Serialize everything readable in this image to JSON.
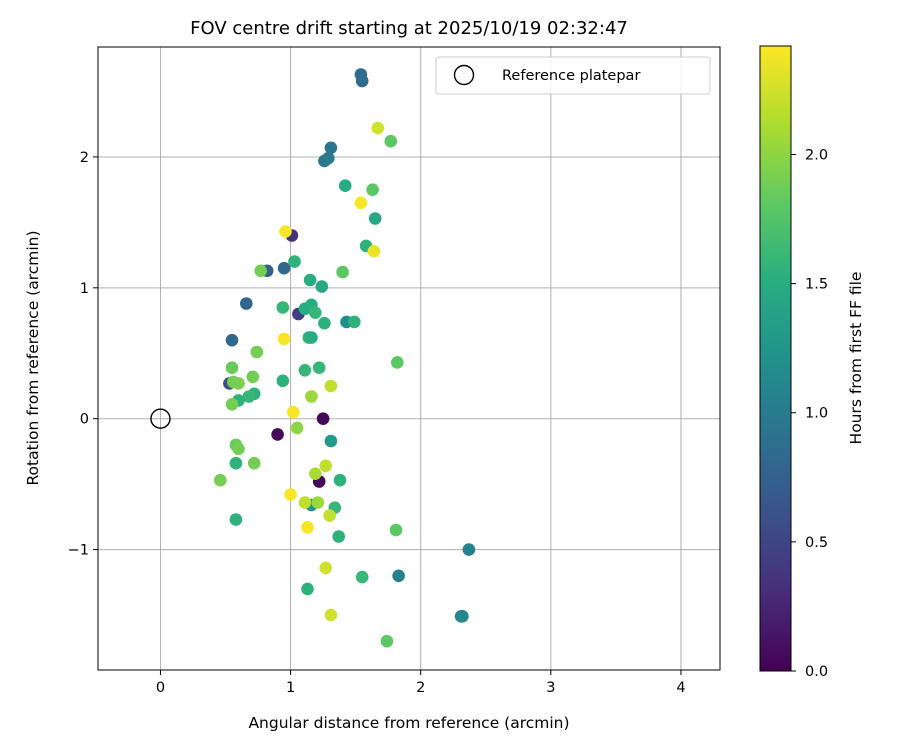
{
  "chart_data": {
    "type": "scatter",
    "title": "FOV centre drift starting at 2025/10/19 02:32:47",
    "xlabel": "Angular distance from reference (arcmin)",
    "ylabel": "Rotation from reference (arcmin)",
    "xlim": [
      -0.48,
      4.3
    ],
    "ylim": [
      -1.92,
      2.84
    ],
    "xticks": [
      0,
      1,
      2,
      3,
      4
    ],
    "yticks": [
      -1,
      0,
      1,
      2
    ],
    "xtick_labels": [
      "0",
      "1",
      "2",
      "3",
      "4"
    ],
    "ytick_labels": [
      "−1",
      "0",
      "1",
      "2"
    ],
    "grid": true,
    "legend": {
      "label": "Reference platepar",
      "location": "top-right"
    },
    "reference_point": {
      "x": 0,
      "y": 0
    },
    "colorbar": {
      "label": "Hours from first FF file",
      "colormap": "viridis",
      "range": [
        0.0,
        2.42
      ],
      "ticks": [
        0.0,
        0.5,
        1.0,
        1.5,
        2.0
      ],
      "tick_labels": [
        "0.0",
        "0.5",
        "1.0",
        "1.5",
        "2.0"
      ]
    },
    "points": [
      {
        "x": 0.9,
        "y": -0.12,
        "c": 0.05
      },
      {
        "x": 1.25,
        "y": 0.0,
        "c": 0.05
      },
      {
        "x": 1.22,
        "y": -0.48,
        "c": 0.05
      },
      {
        "x": 1.01,
        "y": 1.4,
        "c": 0.35
      },
      {
        "x": 1.06,
        "y": 0.8,
        "c": 0.45
      },
      {
        "x": 0.53,
        "y": 0.27,
        "c": 0.6
      },
      {
        "x": 0.55,
        "y": 0.6,
        "c": 0.8
      },
      {
        "x": 0.66,
        "y": 0.88,
        "c": 0.8
      },
      {
        "x": 0.95,
        "y": 1.15,
        "c": 0.8
      },
      {
        "x": 0.82,
        "y": 1.13,
        "c": 0.75
      },
      {
        "x": 1.54,
        "y": 2.63,
        "c": 0.85
      },
      {
        "x": 1.55,
        "y": 2.58,
        "c": 0.85
      },
      {
        "x": 1.31,
        "y": 2.07,
        "c": 0.95
      },
      {
        "x": 1.26,
        "y": 1.97,
        "c": 0.95
      },
      {
        "x": 1.29,
        "y": 1.99,
        "c": 1.0
      },
      {
        "x": 2.37,
        "y": -1.0,
        "c": 1.05
      },
      {
        "x": 1.83,
        "y": -1.2,
        "c": 1.05
      },
      {
        "x": 2.31,
        "y": -1.51,
        "c": 1.1
      },
      {
        "x": 2.32,
        "y": -1.51,
        "c": 1.1
      },
      {
        "x": 1.31,
        "y": -0.17,
        "c": 1.3
      },
      {
        "x": 1.16,
        "y": -0.66,
        "c": 1.25
      },
      {
        "x": 1.43,
        "y": 0.74,
        "c": 1.2
      },
      {
        "x": 1.65,
        "y": 1.53,
        "c": 1.45
      },
      {
        "x": 1.42,
        "y": 1.78,
        "c": 1.5
      },
      {
        "x": 1.49,
        "y": 0.74,
        "c": 1.55
      },
      {
        "x": 1.58,
        "y": 1.32,
        "c": 1.55
      },
      {
        "x": 1.03,
        "y": 1.2,
        "c": 1.55
      },
      {
        "x": 1.15,
        "y": 1.06,
        "c": 1.5
      },
      {
        "x": 1.24,
        "y": 1.01,
        "c": 1.45
      },
      {
        "x": 1.16,
        "y": 0.87,
        "c": 1.5
      },
      {
        "x": 1.11,
        "y": 0.84,
        "c": 1.5
      },
      {
        "x": 1.19,
        "y": 0.81,
        "c": 1.6
      },
      {
        "x": 1.26,
        "y": 0.73,
        "c": 1.55
      },
      {
        "x": 0.94,
        "y": 0.85,
        "c": 1.6
      },
      {
        "x": 1.14,
        "y": 0.62,
        "c": 1.55
      },
      {
        "x": 1.16,
        "y": 0.62,
        "c": 1.5
      },
      {
        "x": 1.22,
        "y": 0.39,
        "c": 1.6
      },
      {
        "x": 1.11,
        "y": 0.37,
        "c": 1.6
      },
      {
        "x": 0.94,
        "y": 0.29,
        "c": 1.55
      },
      {
        "x": 0.72,
        "y": 0.19,
        "c": 1.55
      },
      {
        "x": 0.68,
        "y": 0.17,
        "c": 1.6
      },
      {
        "x": 0.6,
        "y": 0.14,
        "c": 1.55
      },
      {
        "x": 0.58,
        "y": -0.34,
        "c": 1.55
      },
      {
        "x": 0.58,
        "y": -0.77,
        "c": 1.55
      },
      {
        "x": 1.38,
        "y": -0.47,
        "c": 1.55
      },
      {
        "x": 1.34,
        "y": -0.68,
        "c": 1.6
      },
      {
        "x": 1.37,
        "y": -0.9,
        "c": 1.55
      },
      {
        "x": 1.55,
        "y": -1.21,
        "c": 1.6
      },
      {
        "x": 1.13,
        "y": -1.3,
        "c": 1.55
      },
      {
        "x": 1.4,
        "y": 1.12,
        "c": 1.8
      },
      {
        "x": 1.63,
        "y": 1.75,
        "c": 1.8
      },
      {
        "x": 1.77,
        "y": 2.12,
        "c": 1.8
      },
      {
        "x": 1.82,
        "y": 0.43,
        "c": 1.8
      },
      {
        "x": 1.81,
        "y": -0.85,
        "c": 1.8
      },
      {
        "x": 1.74,
        "y": -1.7,
        "c": 1.8
      },
      {
        "x": 0.77,
        "y": 1.13,
        "c": 1.9
      },
      {
        "x": 0.74,
        "y": 0.51,
        "c": 1.9
      },
      {
        "x": 0.71,
        "y": 0.32,
        "c": 1.9
      },
      {
        "x": 0.55,
        "y": 0.39,
        "c": 1.85
      },
      {
        "x": 0.6,
        "y": 0.27,
        "c": 1.95
      },
      {
        "x": 0.56,
        "y": 0.28,
        "c": 1.9
      },
      {
        "x": 0.55,
        "y": 0.11,
        "c": 1.9
      },
      {
        "x": 0.58,
        "y": -0.2,
        "c": 1.85
      },
      {
        "x": 0.6,
        "y": -0.23,
        "c": 1.9
      },
      {
        "x": 0.72,
        "y": -0.34,
        "c": 1.9
      },
      {
        "x": 0.46,
        "y": -0.47,
        "c": 1.9
      },
      {
        "x": 1.05,
        "y": -0.07,
        "c": 2.0
      },
      {
        "x": 1.16,
        "y": 0.17,
        "c": 2.05
      },
      {
        "x": 1.19,
        "y": -0.42,
        "c": 2.1
      },
      {
        "x": 1.21,
        "y": -0.64,
        "c": 2.05
      },
      {
        "x": 1.27,
        "y": -0.36,
        "c": 2.2
      },
      {
        "x": 1.31,
        "y": 0.25,
        "c": 2.2
      },
      {
        "x": 1.11,
        "y": -0.64,
        "c": 2.2
      },
      {
        "x": 1.3,
        "y": -0.74,
        "c": 2.2
      },
      {
        "x": 1.27,
        "y": -1.14,
        "c": 2.25
      },
      {
        "x": 1.31,
        "y": -1.5,
        "c": 2.25
      },
      {
        "x": 1.67,
        "y": 2.22,
        "c": 2.25
      },
      {
        "x": 1.64,
        "y": 1.28,
        "c": 2.35
      },
      {
        "x": 1.54,
        "y": 1.65,
        "c": 2.4
      },
      {
        "x": 0.96,
        "y": 1.43,
        "c": 2.4
      },
      {
        "x": 0.95,
        "y": 0.61,
        "c": 2.4
      },
      {
        "x": 1.02,
        "y": 0.05,
        "c": 2.4
      },
      {
        "x": 1.0,
        "y": -0.58,
        "c": 2.4
      },
      {
        "x": 1.13,
        "y": -0.83,
        "c": 2.4
      }
    ]
  }
}
